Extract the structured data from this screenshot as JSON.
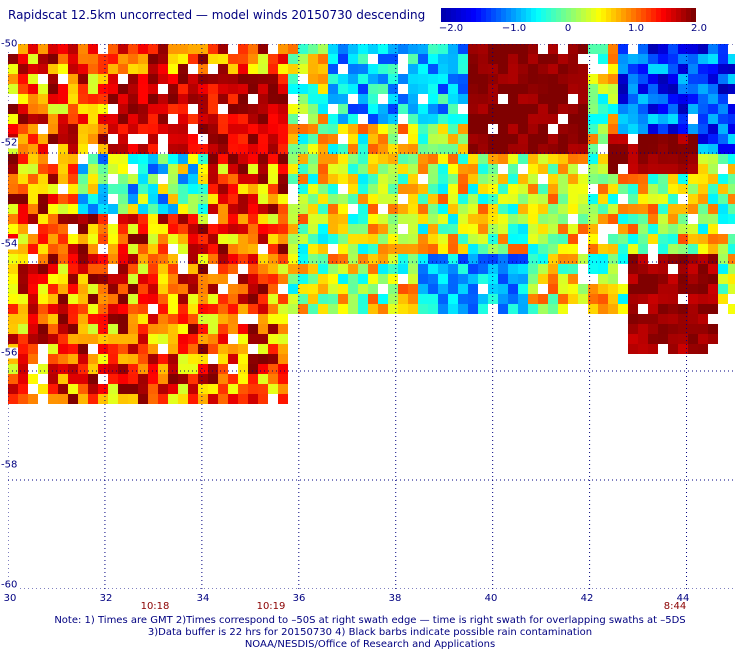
{
  "title": "Rapidscat 12.5km uncorrected — model winds 20150730 descending",
  "colorbar": {
    "min": -2.0,
    "max": 2.0,
    "ticks": [
      "−2.0",
      "−1.0",
      "0",
      "1.0",
      "2.0"
    ],
    "gradient": [
      "#0000b0",
      "#0000ff",
      "#0080ff",
      "#00ffff",
      "#80ff80",
      "#ffff00",
      "#ff8000",
      "#ff0000",
      "#800000"
    ]
  },
  "axes": {
    "lat_ticks": [
      "-50",
      "-52",
      "-54",
      "-56",
      "-58",
      "-60"
    ],
    "lon_ticks": [
      "30",
      "32",
      "34",
      "36",
      "38",
      "40",
      "42",
      "44"
    ],
    "lat_range": [
      -60,
      -50
    ],
    "lon_range": [
      30,
      45
    ],
    "grid": true
  },
  "swath_times": [
    "10:18",
    "10:19",
    "8:44"
  ],
  "notes": [
    "Note: 1) Times are GMT 2)Times correspond to –50S at right swath edge — time is right swath for overlapping swaths at –5DS",
    "3)Data buffer is 22 hrs for 20150730 4) Black barbs indicate possible rain contamination",
    "NOAA/NESDIS/Office of Research and Applications"
  ],
  "field_regions": [
    {
      "lon": [
        30,
        35.8
      ],
      "lat": [
        -56.6,
        -50
      ],
      "mean": 1.2,
      "spread": 0.9
    },
    {
      "lon": [
        32,
        35.8
      ],
      "lat": [
        -50.5,
        -52.2
      ],
      "mean": 1.7,
      "spread": 0.4
    },
    {
      "lon": [
        31.5,
        34.2
      ],
      "lat": [
        -52,
        -53.2
      ],
      "mean": -0.2,
      "spread": 1.0
    },
    {
      "lon": [
        35.8,
        45
      ],
      "lat": [
        -55.0,
        -50
      ],
      "mean": 0.3,
      "spread": 0.9
    },
    {
      "lon": [
        36.5,
        41
      ],
      "lat": [
        -50,
        -51.5
      ],
      "mean": -0.7,
      "spread": 0.6
    },
    {
      "lon": [
        38.5,
        40.8
      ],
      "lat": [
        -53.8,
        -55.0
      ],
      "mean": -0.8,
      "spread": 0.5
    },
    {
      "lon": [
        39.5,
        42
      ],
      "lat": [
        -50,
        -52
      ],
      "mean": 2.0,
      "spread": 0.2
    },
    {
      "lon": [
        42.5,
        45
      ],
      "lat": [
        -50,
        -52.0
      ],
      "mean": -1.3,
      "spread": 0.7
    },
    {
      "lon": [
        42.3,
        44.3
      ],
      "lat": [
        -51.6,
        -52.4
      ],
      "mean": 1.9,
      "spread": 0.2
    },
    {
      "lon": [
        42.8,
        44.6
      ],
      "lat": [
        -53.8,
        -55.6
      ],
      "mean": 1.9,
      "spread": 0.2
    }
  ]
}
